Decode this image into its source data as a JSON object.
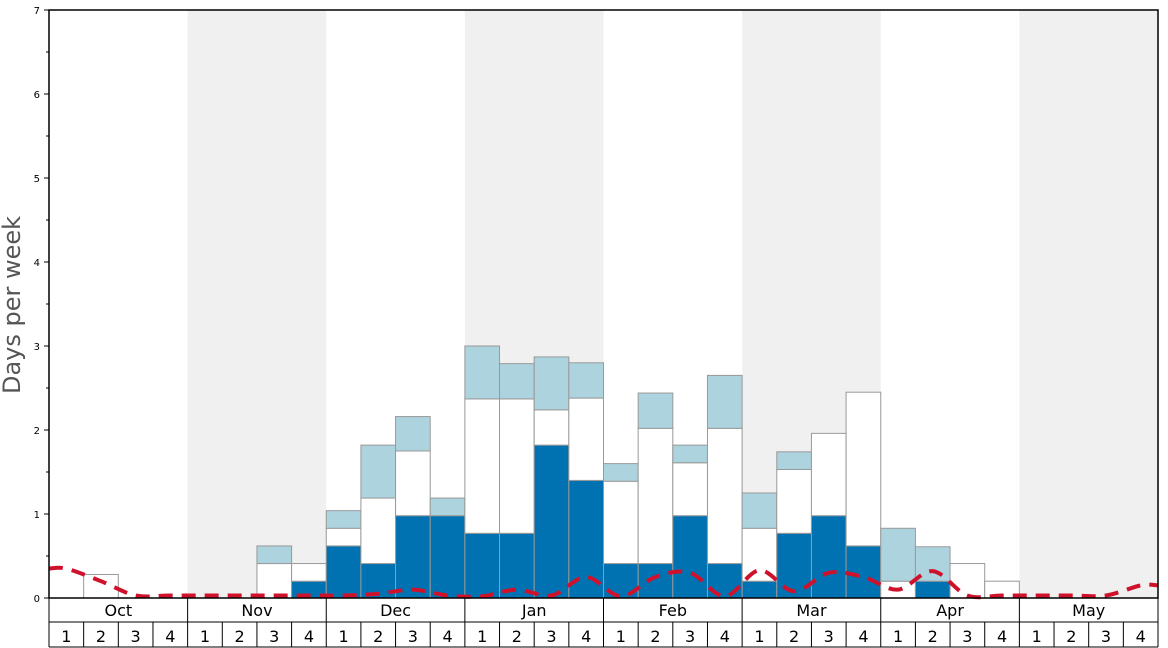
{
  "chart_data": {
    "type": "bar",
    "title": "",
    "xlabel": "",
    "ylabel": "Days per week",
    "ylim": [
      0,
      7
    ],
    "yticks": [
      "0",
      "1",
      "2",
      "3",
      "4",
      "5",
      "6",
      "7"
    ],
    "months": [
      "Oct",
      "Nov",
      "Dec",
      "Jan",
      "Feb",
      "Mar",
      "Apr",
      "May"
    ],
    "week_labels": [
      "1",
      "2",
      "3",
      "4"
    ],
    "stacked": true,
    "series": [
      {
        "color": "#0072b2",
        "values": [
          0,
          0,
          0,
          0,
          0,
          0,
          0,
          0.2,
          0.62,
          0.41,
          0.98,
          0.98,
          0.77,
          0.77,
          1.82,
          1.4,
          0.41,
          0.41,
          0.98,
          0.41,
          0.2,
          0.77,
          0.98,
          0.62,
          0,
          0.2,
          0,
          0,
          0,
          0,
          0,
          0
        ]
      },
      {
        "color": "#ffffff",
        "values": [
          0,
          0.28,
          0,
          0,
          0,
          0,
          0.41,
          0.21,
          0.21,
          0.78,
          0.77,
          0,
          1.6,
          1.6,
          0.42,
          0.98,
          0.98,
          1.61,
          0.63,
          1.61,
          0.63,
          0.76,
          0.98,
          1.83,
          0.2,
          0,
          0.41,
          0.2,
          0,
          0,
          0,
          0
        ]
      },
      {
        "color": "#add3df",
        "values": [
          0,
          0,
          0,
          0,
          0,
          0,
          0.21,
          0,
          0.21,
          0.63,
          0.41,
          0.21,
          0.63,
          0.42,
          0.63,
          0.42,
          0.21,
          0.42,
          0.21,
          0.63,
          0.42,
          0.21,
          0,
          0,
          0.63,
          0.41,
          0,
          0,
          0,
          0,
          0,
          0
        ]
      },
      {
        "color": "#d0112b",
        "line": true,
        "dashed": true,
        "values": [
          0.35,
          0.2,
          0.03,
          0.03,
          0.03,
          0.03,
          0.03,
          0.03,
          0.03,
          0.05,
          0.1,
          0.03,
          0.02,
          0.1,
          0.03,
          0.25,
          0.02,
          0.25,
          0.3,
          0.02,
          0.33,
          0.08,
          0.3,
          0.25,
          0.1,
          0.32,
          0.03,
          0.03,
          0.03,
          0.03,
          0.03,
          0.15
        ]
      }
    ],
    "grid": false,
    "alternating_month_bands": "#f0f0f0"
  }
}
